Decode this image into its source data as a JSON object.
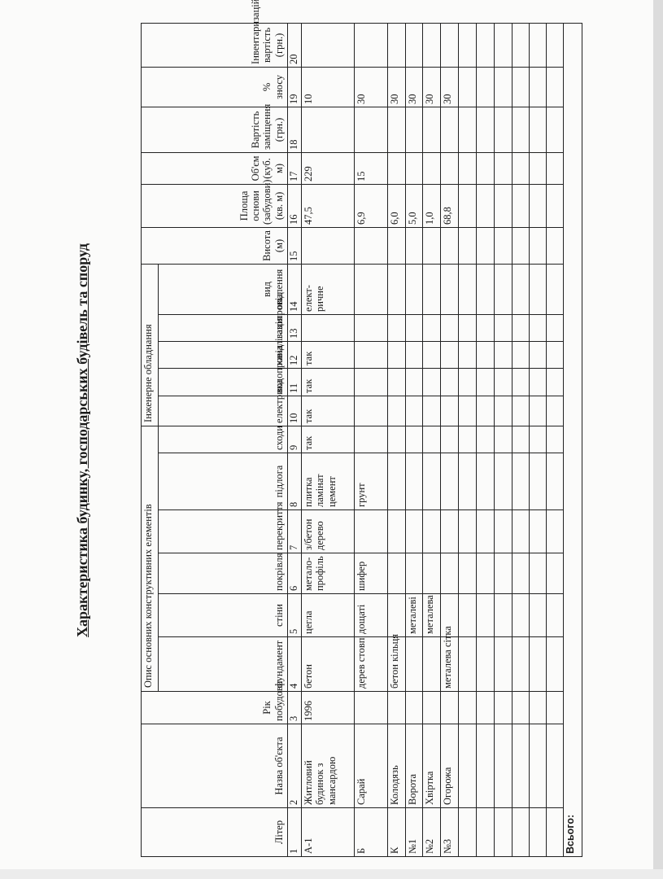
{
  "title": "Характеристика будинку, господарських будівель та споруд",
  "groups": {
    "construction": "Опис основних конструктивних елементів",
    "engineering": "Інженерне обладнання"
  },
  "columns": [
    {
      "num": "1",
      "label": "Літер"
    },
    {
      "num": "2",
      "label": "Назва об'єкта"
    },
    {
      "num": "3",
      "label": "Рік побудови"
    },
    {
      "num": "4",
      "label": "фундамент"
    },
    {
      "num": "5",
      "label": "стіни"
    },
    {
      "num": "6",
      "label": "покрівля"
    },
    {
      "num": "7",
      "label": "перекриття"
    },
    {
      "num": "8",
      "label": "підлога"
    },
    {
      "num": "9",
      "label": "сходи"
    },
    {
      "num": "10",
      "label": "електрика"
    },
    {
      "num": "11",
      "label": "водопровід"
    },
    {
      "num": "12",
      "label": "каналізація"
    },
    {
      "num": "13",
      "label": "газопровід"
    },
    {
      "num": "14",
      "label": "вид опалення"
    },
    {
      "num": "15",
      "label": "Висота (м)"
    },
    {
      "num": "16",
      "label": "Площа основи\n(забудови)(кв. м)"
    },
    {
      "num": "17",
      "label": "Об'єм (куб. м)"
    },
    {
      "num": "18",
      "label": "Вартість заміщення\n(грн.)"
    },
    {
      "num": "19",
      "label": "% зносу"
    },
    {
      "num": "20",
      "label": "Інвентаризаційна\nвартість (грн.)"
    }
  ],
  "rows": [
    [
      "А-1",
      "Житловий\nбудинок з\nмансардою",
      "1996",
      "бетон",
      "цегла",
      "метало-\nпрофіль",
      "з/бетон\nдерево",
      "плитка\nламінат\nцемент",
      "так",
      "так",
      "так",
      "так",
      "",
      "елект-\nричне",
      "",
      "47,5",
      "229",
      "",
      "10",
      ""
    ],
    [
      "Б",
      "Сарай",
      "",
      "дерев\nстовп",
      "дощаті",
      "шифер",
      "",
      "грунт",
      "",
      "",
      "",
      "",
      "",
      "",
      "",
      "6,9",
      "15",
      "",
      "30",
      ""
    ],
    [
      "К",
      "Колодязь",
      "",
      "бетон кільця",
      "",
      "",
      "",
      "",
      "",
      "",
      "",
      "",
      "",
      "",
      "",
      "6,0",
      "",
      "",
      "30",
      ""
    ],
    [
      "№1",
      "Ворота",
      "",
      "",
      "металеві",
      "",
      "",
      "",
      "",
      "",
      "",
      "",
      "",
      "",
      "",
      "5,0",
      "",
      "",
      "30",
      ""
    ],
    [
      "№2",
      "Хвіртка",
      "",
      "",
      "металева",
      "",
      "",
      "",
      "",
      "",
      "",
      "",
      "",
      "",
      "",
      "1,0",
      "",
      "",
      "30",
      ""
    ],
    [
      "№3",
      "Огорожа",
      "",
      "металева сітка",
      "",
      "",
      "",
      "",
      "",
      "",
      "",
      "",
      "",
      "",
      "",
      "68,8",
      "",
      "",
      "30",
      ""
    ],
    [
      "",
      "",
      "",
      "",
      "",
      "",
      "",
      "",
      "",
      "",
      "",
      "",
      "",
      "",
      "",
      "",
      "",
      "",
      "",
      ""
    ],
    [
      "",
      "",
      "",
      "",
      "",
      "",
      "",
      "",
      "",
      "",
      "",
      "",
      "",
      "",
      "",
      "",
      "",
      "",
      "",
      ""
    ],
    [
      "",
      "",
      "",
      "",
      "",
      "",
      "",
      "",
      "",
      "",
      "",
      "",
      "",
      "",
      "",
      "",
      "",
      "",
      "",
      ""
    ],
    [
      "",
      "",
      "",
      "",
      "",
      "",
      "",
      "",
      "",
      "",
      "",
      "",
      "",
      "",
      "",
      "",
      "",
      "",
      "",
      ""
    ],
    [
      "",
      "",
      "",
      "",
      "",
      "",
      "",
      "",
      "",
      "",
      "",
      "",
      "",
      "",
      "",
      "",
      "",
      "",
      "",
      ""
    ],
    [
      "",
      "",
      "",
      "",
      "",
      "",
      "",
      "",
      "",
      "",
      "",
      "",
      "",
      "",
      "",
      "",
      "",
      "",
      "",
      ""
    ]
  ],
  "total_label": "Всього:"
}
